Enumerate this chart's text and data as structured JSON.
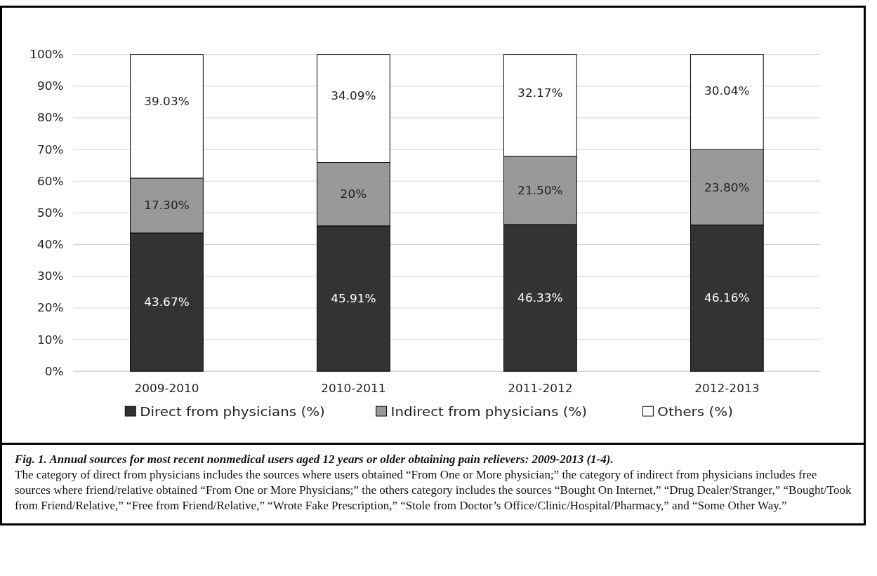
{
  "chart_data": {
    "type": "bar",
    "stacked": true,
    "title": "Fig. 1. Annual sources for most recent nonmedical users aged 12 years or older obtaining pain relievers: 2009-2013 (1-4).",
    "annotations": [
      "The category of direct from physicians includes the sources where users obtained “From One or More physician;” the category of indirect from physicians includes free sources where friend/relative obtained “From One or More Physicians;” the others category includes the sources “Bought On Internet,” “Drug Dealer/Stranger,” “Bought/Took from Friend/Relative,” “Free from Friend/Relative,” “Wrote Fake Prescription,” “Stole from Doctor’s Office/Clinic/Hospital/Pharmacy,” and “Some Other Way.”"
    ],
    "categories": [
      "2009-2010",
      "2010-2011",
      "2011-2012",
      "2012-2013"
    ],
    "series": [
      {
        "name": "Direct from physicians (%)",
        "color": "#333333",
        "values": [
          43.67,
          45.91,
          46.33,
          46.16
        ],
        "value_labels": [
          "43.67%",
          "45.91%",
          "46.33%",
          "46.16%"
        ]
      },
      {
        "name": "Indirect from physicians (%)",
        "color": "#999999",
        "values": [
          17.3,
          20,
          21.5,
          23.8
        ],
        "value_labels": [
          "17.30%",
          "20%",
          "21.50%",
          "23.80%"
        ]
      },
      {
        "name": "Others (%)",
        "color": "#ffffff",
        "values": [
          39.03,
          34.09,
          32.17,
          30.04
        ],
        "value_labels": [
          "39.03%",
          "34.09%",
          "32.17%",
          "30.04%"
        ]
      }
    ],
    "ylim": [
      0,
      100
    ],
    "yticks": [
      {
        "value": 0,
        "label": "0%"
      },
      {
        "value": 10,
        "label": "10%"
      },
      {
        "value": 20,
        "label": "20%"
      },
      {
        "value": 30,
        "label": "30%"
      },
      {
        "value": 40,
        "label": "40%"
      },
      {
        "value": 50,
        "label": "50%"
      },
      {
        "value": 60,
        "label": "60%"
      },
      {
        "value": 70,
        "label": "70%"
      },
      {
        "value": 80,
        "label": "80%"
      },
      {
        "value": 90,
        "label": "90%"
      },
      {
        "value": 100,
        "label": "100%"
      }
    ],
    "grid": "y",
    "legend": "bottom"
  }
}
